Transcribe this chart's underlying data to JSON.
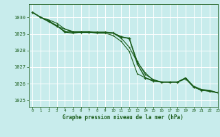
{
  "title": "Graphe pression niveau de la mer (hPa)",
  "background_color": "#c8ecec",
  "grid_color": "#ffffff",
  "line_color": "#1a5c1a",
  "xlim": [
    -0.5,
    23
  ],
  "ylim": [
    1024.6,
    1030.8
  ],
  "yticks": [
    1025,
    1026,
    1027,
    1028,
    1029,
    1030
  ],
  "xticks": [
    0,
    1,
    2,
    3,
    4,
    5,
    6,
    7,
    8,
    9,
    10,
    11,
    12,
    13,
    14,
    15,
    16,
    17,
    18,
    19,
    20,
    21,
    22,
    23
  ],
  "series1": [
    1030.3,
    1030.0,
    1029.85,
    1029.65,
    1029.3,
    1029.15,
    1029.15,
    1029.15,
    1029.1,
    1029.1,
    1029.05,
    1028.85,
    1028.7,
    1027.35,
    1026.55,
    1026.25,
    1026.1,
    1026.1,
    1026.1,
    1026.35,
    1025.85,
    1025.65,
    1025.6,
    1025.45
  ],
  "series2": [
    1030.3,
    1030.0,
    1029.8,
    1029.5,
    1029.1,
    1029.05,
    1029.1,
    1029.1,
    1029.05,
    1029.05,
    1028.9,
    1028.55,
    1027.95,
    1026.6,
    1026.35,
    1026.2,
    1026.1,
    1026.1,
    1026.1,
    1026.35,
    1025.8,
    1025.6,
    1025.55,
    1025.45
  ],
  "series3": [
    1030.3,
    1030.0,
    1029.75,
    1029.45,
    1029.3,
    1029.1,
    1029.1,
    1029.1,
    1029.1,
    1029.1,
    1029.05,
    1028.75,
    1028.2,
    1027.3,
    1026.65,
    1026.2,
    1026.1,
    1026.1,
    1026.1,
    1026.35,
    1025.8,
    1025.6,
    1025.55,
    1025.45
  ],
  "series_main": [
    1030.3,
    1030.0,
    1029.75,
    1029.5,
    1029.15,
    1029.1,
    1029.1,
    1029.1,
    1029.1,
    1029.1,
    1029.05,
    1028.8,
    1028.75,
    1027.2,
    1026.35,
    1026.15,
    1026.1,
    1026.1,
    1026.1,
    1026.3,
    1025.8,
    1025.6,
    1025.55,
    1025.45
  ]
}
